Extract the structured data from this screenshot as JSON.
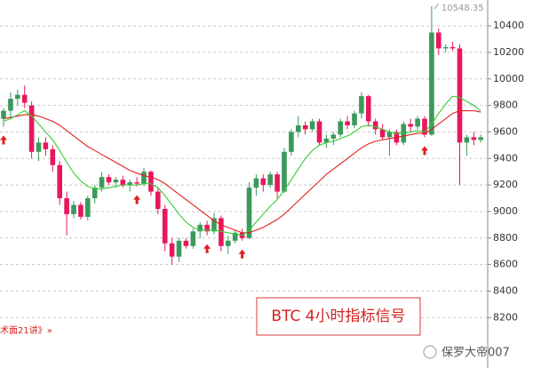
{
  "chart_data": {
    "type": "candlestick",
    "categories": [
      null,
      null,
      null,
      null,
      null,
      null,
      null,
      null,
      null,
      null,
      null,
      null,
      null,
      null,
      null,
      null,
      null,
      null,
      null,
      null,
      null,
      null,
      null,
      null,
      null,
      null,
      null,
      null,
      null,
      null,
      null,
      null,
      null,
      null,
      null,
      null,
      null,
      null,
      null,
      null,
      null,
      null,
      null,
      null,
      null,
      null,
      null,
      null,
      null,
      null,
      null,
      null,
      null,
      null,
      null,
      null,
      null,
      null,
      null,
      null,
      null,
      null,
      null,
      null,
      null,
      null,
      null,
      null,
      null
    ],
    "open": [
      9700,
      9760,
      9850,
      9880,
      9800,
      9450,
      9520,
      9470,
      9350,
      9100,
      8980,
      9050,
      8960,
      9100,
      9180,
      9260,
      9220,
      9240,
      9200,
      9220,
      9210,
      9300,
      9150,
      9020,
      8760,
      8660,
      8780,
      8740,
      8850,
      8900,
      8850,
      8950,
      8740,
      8780,
      8840,
      8800,
      9180,
      9250,
      9200,
      9280,
      9150,
      9450,
      9600,
      9650,
      9620,
      9680,
      9520,
      9550,
      9580,
      9680,
      9650,
      9740,
      9870,
      9680,
      9620,
      9560,
      9600,
      9520,
      9660,
      9640,
      9700,
      9580,
      10350,
      10230,
      10240,
      10230,
      9520,
      9560,
      9540
    ],
    "high": [
      9780,
      9900,
      9920,
      9950,
      9830,
      9560,
      9560,
      9500,
      9380,
      9150,
      9080,
      9070,
      9120,
      9200,
      9300,
      9280,
      9260,
      9270,
      9240,
      9260,
      9330,
      9310,
      9180,
      9050,
      8800,
      8800,
      8800,
      8870,
      8920,
      8930,
      8990,
      8970,
      8820,
      8860,
      8870,
      9220,
      9280,
      9280,
      9300,
      9300,
      9480,
      9620,
      9720,
      9680,
      9700,
      9700,
      9580,
      9600,
      9700,
      9720,
      9760,
      9900,
      9880,
      9700,
      9660,
      9620,
      9620,
      9680,
      9700,
      9720,
      9720,
      10548.35,
      10380,
      10260,
      10280,
      10260,
      9580,
      9600,
      9580
    ],
    "low": [
      9640,
      9700,
      9800,
      9780,
      9400,
      9380,
      9420,
      9300,
      9050,
      8820,
      8950,
      8940,
      8930,
      9060,
      9150,
      9200,
      9180,
      9180,
      9150,
      9190,
      9190,
      9120,
      8980,
      8700,
      8600,
      8620,
      8720,
      8720,
      8800,
      8820,
      8830,
      8700,
      8680,
      8760,
      8780,
      8790,
      9120,
      9150,
      9180,
      9100,
      9140,
      9420,
      9560,
      9580,
      9600,
      9500,
      9480,
      9500,
      9560,
      9620,
      9630,
      9700,
      9640,
      9580,
      9540,
      9420,
      9500,
      9500,
      9600,
      9620,
      9560,
      9570,
      10180,
      10200,
      10210,
      9200,
      9420,
      9500,
      9520
    ],
    "close": [
      9760,
      9850,
      9880,
      9820,
      9450,
      9520,
      9470,
      9350,
      9100,
      8980,
      9050,
      8960,
      9100,
      9180,
      9260,
      9220,
      9240,
      9200,
      9220,
      9210,
      9300,
      9150,
      9020,
      8760,
      8660,
      8780,
      8740,
      8850,
      8900,
      8850,
      8950,
      8740,
      8780,
      8840,
      8800,
      9180,
      9250,
      9200,
      9280,
      9150,
      9450,
      9600,
      9650,
      9620,
      9680,
      9520,
      9550,
      9580,
      9680,
      9650,
      9740,
      9870,
      9680,
      9620,
      9560,
      9600,
      9520,
      9660,
      9640,
      9700,
      9580,
      10350,
      10230,
      10240,
      10230,
      9520,
      9560,
      9540,
      9560
    ],
    "up_color": "#3a9a5c",
    "down_color": "#e8175d",
    "ma": [
      {
        "color": "#e02020",
        "values": [
          9700,
          9710,
          9720,
          9730,
          9730,
          9720,
          9700,
          9680,
          9650,
          9610,
          9570,
          9530,
          9490,
          9460,
          9430,
          9400,
          9370,
          9340,
          9310,
          9290,
          9270,
          9260,
          9240,
          9210,
          9170,
          9130,
          9090,
          9050,
          9010,
          8970,
          8930,
          8900,
          8880,
          8860,
          8840,
          8840,
          8860,
          8880,
          8910,
          8940,
          8980,
          9030,
          9080,
          9130,
          9180,
          9230,
          9280,
          9320,
          9360,
          9400,
          9440,
          9480,
          9510,
          9530,
          9540,
          9550,
          9560,
          9570,
          9580,
          9590,
          9590,
          9620,
          9660,
          9700,
          9740,
          9760,
          9760,
          9760,
          9750
        ]
      },
      {
        "color": "#33cc33",
        "values": [
          9680,
          9700,
          9730,
          9760,
          9720,
          9660,
          9600,
          9540,
          9460,
          9370,
          9290,
          9230,
          9190,
          9170,
          9170,
          9180,
          9190,
          9200,
          9200,
          9200,
          9210,
          9210,
          9180,
          9120,
          9050,
          8980,
          8920,
          8880,
          8860,
          8860,
          8860,
          8850,
          8840,
          8830,
          8820,
          8860,
          8920,
          8980,
          9040,
          9090,
          9160,
          9240,
          9320,
          9400,
          9460,
          9500,
          9520,
          9530,
          9550,
          9570,
          9600,
          9640,
          9650,
          9640,
          9620,
          9600,
          9590,
          9590,
          9600,
          9610,
          9600,
          9660,
          9740,
          9810,
          9870,
          9860,
          9830,
          9800,
          9760
        ]
      }
    ],
    "signals": [
      0,
      19,
      29,
      34,
      60
    ],
    "signal_color": "#e02020",
    "high_label": "10548.35",
    "ylim": [
      7820,
      10595
    ],
    "yticks": [
      8200,
      8400,
      8600,
      8800,
      9000,
      9200,
      9400,
      9600,
      9800,
      10000,
      10200,
      10400
    ],
    "grid": true,
    "box_text": "BTC  4小时指标信号",
    "corner_text": "术面21讲》»",
    "watermark": "保罗大帝007"
  }
}
